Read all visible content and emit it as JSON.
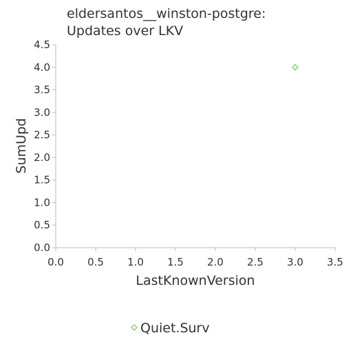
{
  "chart_data": {
    "type": "scatter",
    "title": [
      "eldersantos__winston-postgre:",
      "Updates over LKV"
    ],
    "xlabel": "LastKnownVersion",
    "ylabel": "SumUpd",
    "xlim": [
      0,
      3.5
    ],
    "ylim": [
      0,
      4.5
    ],
    "x_ticks": [
      "0.0",
      "0.5",
      "1.0",
      "1.5",
      "2.0",
      "2.5",
      "3.0",
      "3.5"
    ],
    "y_ticks": [
      "0.0",
      "0.5",
      "1.0",
      "1.5",
      "2.0",
      "2.5",
      "3.0",
      "3.5",
      "4.0",
      "4.5"
    ],
    "grid": false,
    "legend_position": "bottom-center",
    "series": [
      {
        "name": "Quiet.Surv",
        "color": "#90d080",
        "marker": "diamond",
        "points": [
          {
            "x": 3.0,
            "y": 4.0
          }
        ]
      }
    ]
  }
}
